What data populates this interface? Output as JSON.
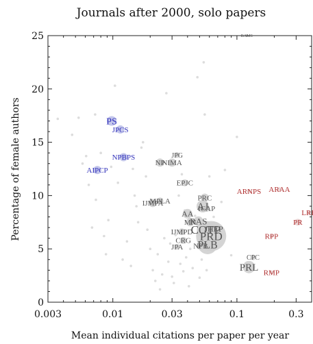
{
  "chart_data": {
    "type": "scatter",
    "title": "Journals after 2000, solo papers",
    "xlabel": "Mean individual citations per paper per year",
    "ylabel": "Percentage of female authors",
    "xscale": "log",
    "xlim": [
      0.003,
      0.4
    ],
    "ylim": [
      0,
      25
    ],
    "xticks": [
      0.003,
      0.01,
      0.03,
      0.1,
      0.3
    ],
    "xtick_labels": [
      "0.003",
      "0.01",
      "0.03",
      "0.1",
      "0.3"
    ],
    "yticks": [
      0,
      5,
      10,
      15,
      20,
      25
    ],
    "ytick_labels": [
      "0",
      "5",
      "10",
      "15",
      "20",
      "25"
    ],
    "grid": false,
    "colors": {
      "blue": "#3333bb",
      "blue_fill": "#b8bce8",
      "red": "#b03030",
      "gray": "#555555",
      "gray_fill": "#cfcfcf",
      "faint": "#dcdcdc"
    },
    "labeled_points": [
      {
        "label": "PS",
        "x": 0.0098,
        "y": 17.0,
        "size": 7,
        "font": 14,
        "group": "blue"
      },
      {
        "label": "JPCS",
        "x": 0.0115,
        "y": 16.2,
        "size": 6,
        "font": 11,
        "group": "blue"
      },
      {
        "label": "NPBPS",
        "x": 0.0122,
        "y": 13.6,
        "size": 6,
        "font": 11,
        "group": "blue"
      },
      {
        "label": "AIPCP",
        "x": 0.0075,
        "y": 12.4,
        "size": 6,
        "font": 11,
        "group": "blue"
      },
      {
        "label": "JPG",
        "x": 0.033,
        "y": 13.8,
        "size": 4,
        "font": 10,
        "group": "gray"
      },
      {
        "label": "NP",
        "x": 0.024,
        "y": 13.1,
        "size": 6,
        "font": 11,
        "group": "gray"
      },
      {
        "label": "NIMA",
        "x": 0.03,
        "y": 13.1,
        "size": 6,
        "font": 11,
        "group": "gray"
      },
      {
        "label": "EPJC",
        "x": 0.038,
        "y": 11.2,
        "size": 5,
        "font": 11,
        "group": "gray"
      },
      {
        "label": "MPLA",
        "x": 0.024,
        "y": 9.5,
        "size": 5,
        "font": 11,
        "group": "gray"
      },
      {
        "label": "IJMPA",
        "x": 0.021,
        "y": 9.3,
        "size": 6,
        "font": 11,
        "group": "gray"
      },
      {
        "label": "PRC",
        "x": 0.055,
        "y": 9.8,
        "size": 6,
        "font": 11,
        "group": "gray"
      },
      {
        "label": "ICAP",
        "x": 0.057,
        "y": 8.8,
        "size": 5,
        "font": 11,
        "group": "gray"
      },
      {
        "label": "AJ",
        "x": 0.053,
        "y": 9.0,
        "size": 9,
        "font": 15,
        "group": "gray"
      },
      {
        "label": "AA",
        "x": 0.04,
        "y": 8.3,
        "size": 7,
        "font": 12,
        "group": "gray"
      },
      {
        "label": "MN",
        "x": 0.042,
        "y": 7.5,
        "size": 6,
        "font": 11,
        "group": "gray"
      },
      {
        "label": "RAS",
        "x": 0.049,
        "y": 7.6,
        "size": 7,
        "font": 13,
        "group": "gray"
      },
      {
        "label": "IJMPD",
        "x": 0.036,
        "y": 6.6,
        "size": 5,
        "font": 11,
        "group": "gray"
      },
      {
        "label": "COTP",
        "x": 0.056,
        "y": 6.8,
        "size": 13,
        "font": 17,
        "group": "gray"
      },
      {
        "label": "JHEP",
        "x": 0.065,
        "y": 6.9,
        "size": 10,
        "font": 12,
        "group": "gray"
      },
      {
        "label": "PRD",
        "x": 0.062,
        "y": 6.2,
        "size": 22,
        "font": 17,
        "group": "gray"
      },
      {
        "label": "CRG",
        "x": 0.037,
        "y": 5.8,
        "size": 5,
        "font": 11,
        "group": "gray"
      },
      {
        "label": "PLB",
        "x": 0.058,
        "y": 5.4,
        "size": 14,
        "font": 16,
        "group": "gray"
      },
      {
        "label": "NPB",
        "x": 0.051,
        "y": 5.3,
        "size": 6,
        "font": 11,
        "group": "gray"
      },
      {
        "label": "JPA",
        "x": 0.033,
        "y": 5.2,
        "size": 4,
        "font": 11,
        "group": "gray"
      },
      {
        "label": "PRL",
        "x": 0.125,
        "y": 3.3,
        "size": 9,
        "font": 15,
        "group": "gray"
      },
      {
        "label": "CPC",
        "x": 0.135,
        "y": 4.2,
        "size": 4,
        "font": 10,
        "group": "gray"
      },
      {
        "label": "BAMS",
        "x": 0.12,
        "y": 25.0,
        "size": 2,
        "font": 6,
        "group": "gray"
      },
      {
        "label": "ARNPS",
        "x": 0.125,
        "y": 10.4,
        "size": 3,
        "font": 11,
        "group": "red"
      },
      {
        "label": "ARAA",
        "x": 0.22,
        "y": 10.6,
        "size": 3,
        "font": 11,
        "group": "red"
      },
      {
        "label": "LRR",
        "x": 0.38,
        "y": 8.4,
        "size": 3,
        "font": 11,
        "group": "red"
      },
      {
        "label": "PR",
        "x": 0.31,
        "y": 7.5,
        "size": 5,
        "font": 11,
        "group": "red"
      },
      {
        "label": "RPP",
        "x": 0.19,
        "y": 6.2,
        "size": 3,
        "font": 11,
        "group": "red"
      },
      {
        "label": "RMP",
        "x": 0.19,
        "y": 2.8,
        "size": 3,
        "font": 11,
        "group": "red"
      }
    ],
    "unlabeled_points": [
      {
        "x": 0.0036,
        "y": 17.2
      },
      {
        "x": 0.0047,
        "y": 15.7
      },
      {
        "x": 0.0053,
        "y": 17.3
      },
      {
        "x": 0.0057,
        "y": 13.0
      },
      {
        "x": 0.0061,
        "y": 13.7
      },
      {
        "x": 0.0064,
        "y": 11.0
      },
      {
        "x": 0.0068,
        "y": 7.0
      },
      {
        "x": 0.0072,
        "y": 17.6
      },
      {
        "x": 0.0073,
        "y": 9.6
      },
      {
        "x": 0.008,
        "y": 14.0
      },
      {
        "x": 0.0085,
        "y": 6.2
      },
      {
        "x": 0.0088,
        "y": 4.5
      },
      {
        "x": 0.0092,
        "y": 7.7
      },
      {
        "x": 0.0097,
        "y": 12.7
      },
      {
        "x": 0.0104,
        "y": 20.3
      },
      {
        "x": 0.011,
        "y": 11.2
      },
      {
        "x": 0.012,
        "y": 4.0
      },
      {
        "x": 0.013,
        "y": 5.7
      },
      {
        "x": 0.014,
        "y": 3.4
      },
      {
        "x": 0.0145,
        "y": 12.5
      },
      {
        "x": 0.015,
        "y": 10.0
      },
      {
        "x": 0.0155,
        "y": 9.0
      },
      {
        "x": 0.016,
        "y": 7.5
      },
      {
        "x": 0.017,
        "y": 14.5
      },
      {
        "x": 0.0175,
        "y": 15.0
      },
      {
        "x": 0.0185,
        "y": 11.8
      },
      {
        "x": 0.019,
        "y": 6.8
      },
      {
        "x": 0.02,
        "y": 5.0
      },
      {
        "x": 0.021,
        "y": 3.0
      },
      {
        "x": 0.022,
        "y": 2.0
      },
      {
        "x": 0.023,
        "y": 4.5
      },
      {
        "x": 0.024,
        "y": 1.2
      },
      {
        "x": 0.025,
        "y": 2.6
      },
      {
        "x": 0.026,
        "y": 6.0
      },
      {
        "x": 0.027,
        "y": 19.6
      },
      {
        "x": 0.028,
        "y": 3.8
      },
      {
        "x": 0.029,
        "y": 5.5
      },
      {
        "x": 0.03,
        "y": 2.4
      },
      {
        "x": 0.031,
        "y": 1.8
      },
      {
        "x": 0.032,
        "y": 6.3
      },
      {
        "x": 0.034,
        "y": 10.0
      },
      {
        "x": 0.035,
        "y": 3.6
      },
      {
        "x": 0.036,
        "y": 12.0
      },
      {
        "x": 0.037,
        "y": 2.9
      },
      {
        "x": 0.038,
        "y": 8.6
      },
      {
        "x": 0.039,
        "y": 4.2
      },
      {
        "x": 0.041,
        "y": 1.5
      },
      {
        "x": 0.042,
        "y": 5.0
      },
      {
        "x": 0.044,
        "y": 3.2
      },
      {
        "x": 0.046,
        "y": 8.1
      },
      {
        "x": 0.048,
        "y": 21.1
      },
      {
        "x": 0.05,
        "y": 2.3
      },
      {
        "x": 0.052,
        "y": 4.0
      },
      {
        "x": 0.054,
        "y": 22.5
      },
      {
        "x": 0.055,
        "y": 17.6
      },
      {
        "x": 0.057,
        "y": 3.0
      },
      {
        "x": 0.06,
        "y": 11.8
      },
      {
        "x": 0.065,
        "y": 8.0
      },
      {
        "x": 0.07,
        "y": 6.0
      },
      {
        "x": 0.075,
        "y": 9.4
      },
      {
        "x": 0.08,
        "y": 12.4
      },
      {
        "x": 0.09,
        "y": 4.4
      },
      {
        "x": 0.1,
        "y": 15.5
      }
    ]
  }
}
